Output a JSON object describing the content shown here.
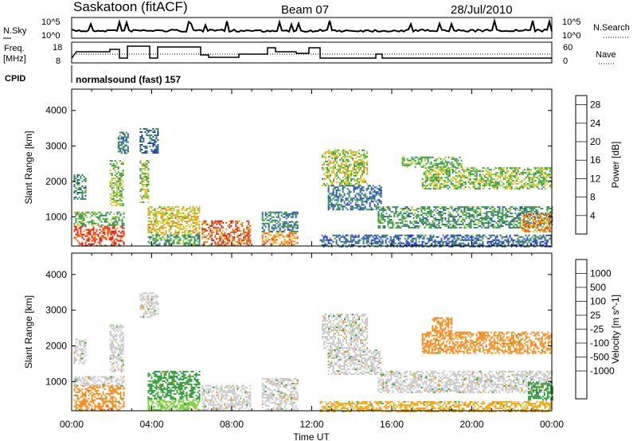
{
  "header": {
    "station": "Saskatoon (fitACF)",
    "beam": "Beam 07",
    "date": "28/Jul/2010",
    "cpid_label": "CPID",
    "cpid_text": "normalsound (fast) 157"
  },
  "status_panels": {
    "noise": {
      "left_label": "N.Sky",
      "right_label": "N.Search",
      "left_ticks": [
        "10^5",
        "10^0"
      ],
      "right_ticks": [
        "10^5",
        "10^0"
      ]
    },
    "freq": {
      "left_label_line1": "Freq.",
      "left_label_line2": "[MHz]",
      "right_label": "Nave",
      "left_ticks": [
        "18",
        "8"
      ],
      "right_ticks": [
        "60",
        "0"
      ]
    }
  },
  "time_axis": {
    "ticks": [
      "00:00",
      "04:00",
      "08:00",
      "12:00",
      "16:00",
      "20:00",
      "00:00"
    ],
    "label": "Time UT"
  },
  "colors": {
    "power": [
      "#1f2be8",
      "#274fa3",
      "#3f8a6a",
      "#2e9e3c",
      "#9acd32",
      "#f0c020",
      "#f08c1c",
      "#e44a1a",
      "#e01010"
    ],
    "velocity": [
      "#e01010",
      "#e84a1a",
      "#f08c1c",
      "#f0a818",
      "#c8c8c8",
      "#c8c8c8",
      "#7ccf3c",
      "#2e9a38",
      "#2f6bb5",
      "#2a2ad6"
    ]
  },
  "chart_data": [
    {
      "type": "heatmap",
      "title": "Power",
      "xlabel": "Time UT",
      "ylabel": "Slant Range [km]",
      "x_ticks": [
        "00:00",
        "04:00",
        "08:00",
        "12:00",
        "16:00",
        "20:00",
        "00:00"
      ],
      "xlim_hours": [
        0,
        24
      ],
      "ylim": [
        180,
        4600
      ],
      "y_ticks": [
        1000,
        2000,
        3000,
        4000
      ],
      "colorbar": {
        "label": "Power [dB]",
        "ticks": [
          4,
          8,
          12,
          16,
          20,
          24,
          28
        ],
        "range": [
          0,
          30
        ],
        "colors_key": "power"
      },
      "regions": [
        {
          "t0": 0.1,
          "t1": 2.6,
          "r0": 200,
          "r1": 750,
          "v": 26
        },
        {
          "t0": 0.1,
          "t1": 2.6,
          "r0": 750,
          "r1": 1150,
          "v": 12
        },
        {
          "t0": 0.1,
          "t1": 0.7,
          "r0": 1500,
          "r1": 2200,
          "v": 9
        },
        {
          "t0": 1.9,
          "t1": 2.6,
          "r0": 1300,
          "r1": 2600,
          "v": 14
        },
        {
          "t0": 2.3,
          "t1": 2.8,
          "r0": 2800,
          "r1": 3400,
          "v": 8
        },
        {
          "t0": 3.4,
          "t1": 4.3,
          "r0": 2800,
          "r1": 3500,
          "v": 6
        },
        {
          "t0": 3.4,
          "t1": 3.8,
          "r0": 1400,
          "r1": 2600,
          "v": 14
        },
        {
          "t0": 3.8,
          "t1": 6.4,
          "r0": 500,
          "r1": 1300,
          "v": 18
        },
        {
          "t0": 3.8,
          "t1": 6.4,
          "r0": 200,
          "r1": 500,
          "v": 10
        },
        {
          "t0": 6.5,
          "t1": 8.9,
          "r0": 200,
          "r1": 900,
          "v": 24
        },
        {
          "t0": 9.5,
          "t1": 11.3,
          "r0": 200,
          "r1": 600,
          "v": 22
        },
        {
          "t0": 9.5,
          "t1": 11.3,
          "r0": 600,
          "r1": 1150,
          "v": 8
        },
        {
          "t0": 12.4,
          "t1": 24.0,
          "r0": 180,
          "r1": 500,
          "v": 6
        },
        {
          "t0": 12.5,
          "t1": 14.8,
          "r0": 1900,
          "r1": 2900,
          "v": 16
        },
        {
          "t0": 12.8,
          "t1": 15.5,
          "r0": 1200,
          "r1": 1900,
          "v": 7
        },
        {
          "t0": 15.3,
          "t1": 24.0,
          "r0": 700,
          "r1": 1300,
          "v": 10
        },
        {
          "t0": 16.5,
          "t1": 19.5,
          "r0": 2400,
          "r1": 2700,
          "v": 12
        },
        {
          "t0": 17.5,
          "t1": 24.0,
          "r0": 1800,
          "r1": 2400,
          "v": 14
        },
        {
          "t0": 22.5,
          "t1": 24.0,
          "r0": 600,
          "r1": 1100,
          "v": 22
        }
      ]
    },
    {
      "type": "heatmap",
      "title": "Velocity",
      "xlabel": "Time UT",
      "ylabel": "Slant Range [km]",
      "x_ticks": [
        "00:00",
        "04:00",
        "08:00",
        "12:00",
        "16:00",
        "20:00",
        "00:00"
      ],
      "xlim_hours": [
        0,
        24
      ],
      "ylim": [
        180,
        4600
      ],
      "y_ticks": [
        1000,
        2000,
        3000,
        4000
      ],
      "colorbar": {
        "label": "Velocity [m s^-1]",
        "ticks": [
          1000,
          500,
          100,
          25,
          -25,
          -100,
          -500,
          -1000
        ],
        "colors_key": "velocity"
      },
      "regions": [
        {
          "t0": 0.1,
          "t1": 2.6,
          "r0": 200,
          "r1": 900,
          "v": -150
        },
        {
          "t0": 0.1,
          "t1": 2.6,
          "r0": 900,
          "r1": 1150,
          "v": 0
        },
        {
          "t0": 0.1,
          "t1": 0.7,
          "r0": 1500,
          "r1": 2200,
          "v": 0
        },
        {
          "t0": 1.9,
          "t1": 2.6,
          "r0": 1300,
          "r1": 2600,
          "v": 0
        },
        {
          "t0": 3.4,
          "t1": 4.3,
          "r0": 2800,
          "r1": 3500,
          "v": 0
        },
        {
          "t0": 3.8,
          "t1": 6.4,
          "r0": 500,
          "r1": 1300,
          "v": 150
        },
        {
          "t0": 3.8,
          "t1": 6.4,
          "r0": 200,
          "r1": 500,
          "v": 50
        },
        {
          "t0": 6.5,
          "t1": 8.9,
          "r0": 200,
          "r1": 900,
          "v": 0
        },
        {
          "t0": 9.5,
          "t1": 11.3,
          "r0": 200,
          "r1": 1100,
          "v": 0
        },
        {
          "t0": 12.4,
          "t1": 24.0,
          "r0": 180,
          "r1": 450,
          "v": -60
        },
        {
          "t0": 12.5,
          "t1": 14.8,
          "r0": 1900,
          "r1": 2900,
          "v": 0
        },
        {
          "t0": 12.8,
          "t1": 15.5,
          "r0": 1200,
          "r1": 1900,
          "v": 0
        },
        {
          "t0": 15.3,
          "t1": 24.0,
          "r0": 700,
          "r1": 1300,
          "v": 0
        },
        {
          "t0": 17.5,
          "t1": 24.0,
          "r0": 1800,
          "r1": 2400,
          "v": -200
        },
        {
          "t0": 18.0,
          "t1": 19.0,
          "r0": 2300,
          "r1": 2800,
          "v": -300
        },
        {
          "t0": 22.8,
          "t1": 24.0,
          "r0": 500,
          "r1": 1000,
          "v": 200
        }
      ]
    }
  ]
}
